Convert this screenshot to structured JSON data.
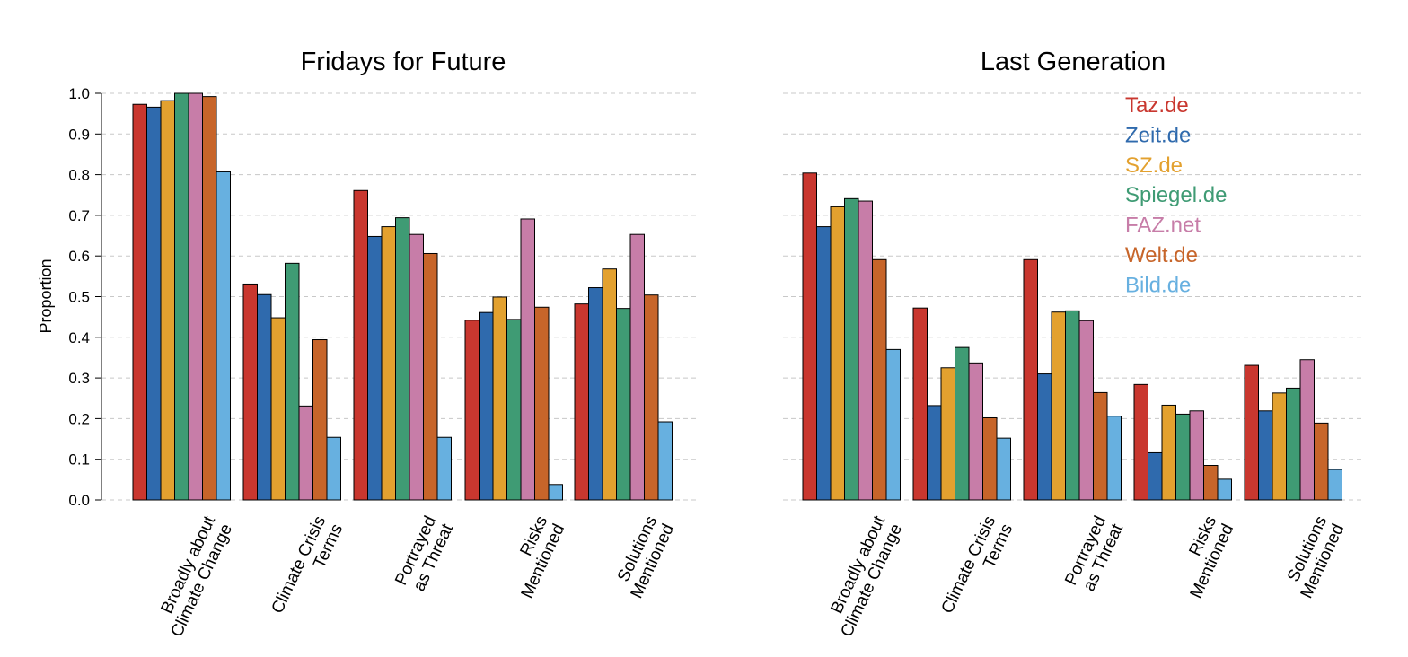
{
  "chart_data": [
    {
      "type": "bar",
      "title": "Fridays for Future",
      "ylabel": "Proportion",
      "ylim": [
        0,
        1
      ],
      "yticks": [
        "0.0",
        "0.1",
        "0.2",
        "0.3",
        "0.4",
        "0.5",
        "0.6",
        "0.7",
        "0.8",
        "0.9",
        "1.0"
      ],
      "grid": true,
      "categories": [
        [
          "Broadly about",
          "Climate Change"
        ],
        [
          "Climate Crisis",
          "Terms"
        ],
        [
          "Portrayed",
          "as Threat"
        ],
        [
          "Risks",
          "Mentioned"
        ],
        [
          "Solutions",
          "Mentioned"
        ]
      ],
      "series": [
        {
          "name": "Taz.de",
          "color": "#c9372f",
          "values": [
            0.973,
            0.531,
            0.761,
            0.442,
            0.482
          ]
        },
        {
          "name": "Zeit.de",
          "color": "#2f6aad",
          "values": [
            0.966,
            0.505,
            0.648,
            0.461,
            0.522
          ]
        },
        {
          "name": "SZ.de",
          "color": "#e3a12f",
          "values": [
            0.982,
            0.448,
            0.672,
            0.499,
            0.568
          ]
        },
        {
          "name": "Spiegel.de",
          "color": "#3f9b74",
          "values": [
            1.0,
            0.582,
            0.694,
            0.444,
            0.471
          ]
        },
        {
          "name": "FAZ.net",
          "color": "#c77da8",
          "values": [
            1.0,
            0.231,
            0.653,
            0.691,
            0.653
          ]
        },
        {
          "name": "Welt.de",
          "color": "#c7652a",
          "values": [
            0.992,
            0.394,
            0.606,
            0.474,
            0.504
          ]
        },
        {
          "name": "Bild.de",
          "color": "#67b0e0",
          "values": [
            0.807,
            0.154,
            0.154,
            0.038,
            0.192
          ]
        }
      ]
    },
    {
      "type": "bar",
      "title": "Last Generation",
      "ylim": [
        0,
        1
      ],
      "grid": true,
      "legend": "top-right",
      "categories": [
        [
          "Broadly about",
          "Climate Change"
        ],
        [
          "Climate Crisis",
          "Terms"
        ],
        [
          "Portrayed",
          "as Threat"
        ],
        [
          "Risks",
          "Mentioned"
        ],
        [
          "Solutions",
          "Mentioned"
        ]
      ],
      "series": [
        {
          "name": "Taz.de",
          "color": "#c9372f",
          "values": [
            0.804,
            0.472,
            0.591,
            0.284,
            0.331
          ]
        },
        {
          "name": "Zeit.de",
          "color": "#2f6aad",
          "values": [
            0.672,
            0.232,
            0.31,
            0.116,
            0.219
          ]
        },
        {
          "name": "SZ.de",
          "color": "#e3a12f",
          "values": [
            0.721,
            0.325,
            0.462,
            0.233,
            0.263
          ]
        },
        {
          "name": "Spiegel.de",
          "color": "#3f9b74",
          "values": [
            0.741,
            0.375,
            0.465,
            0.211,
            0.275
          ]
        },
        {
          "name": "FAZ.net",
          "color": "#c77da8",
          "values": [
            0.735,
            0.337,
            0.441,
            0.219,
            0.345
          ]
        },
        {
          "name": "Welt.de",
          "color": "#c7652a",
          "values": [
            0.591,
            0.202,
            0.264,
            0.085,
            0.189
          ]
        },
        {
          "name": "Bild.de",
          "color": "#67b0e0",
          "values": [
            0.37,
            0.152,
            0.206,
            0.051,
            0.075
          ]
        }
      ]
    }
  ]
}
